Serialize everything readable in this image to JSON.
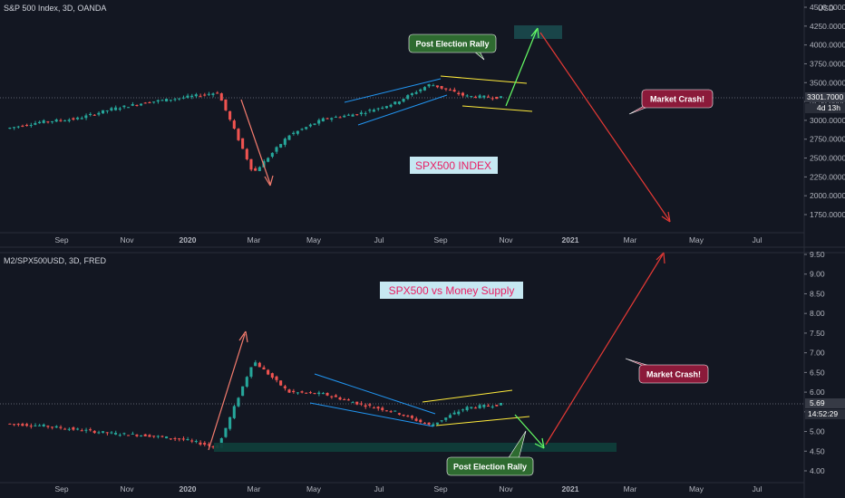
{
  "top": {
    "title": "S&P 500 Index, 3D, OANDA",
    "currency": "USD",
    "price_badge": "3301.7000",
    "countdown_badge": "4d 13h",
    "label_center": "SPX500 INDEX",
    "callout_rally": "Post Election Rally",
    "callout_crash": "Market Crash!",
    "y_ticks": [
      "4500.0000",
      "4250.0000",
      "4000.0000",
      "3750.0000",
      "3500.0000",
      "3250.0000",
      "3000.0000",
      "2750.0000",
      "2500.0000",
      "2250.0000",
      "2000.0000",
      "1750.0000"
    ],
    "x_ticks": [
      "Sep",
      "Nov",
      "2020",
      "Mar",
      "May",
      "Jul",
      "Sep",
      "Nov",
      "2021",
      "Mar",
      "May",
      "Jul"
    ]
  },
  "bottom": {
    "title": "M2/SPX500USD, 3D, FRED",
    "price_badge": "5.69",
    "countdown_badge": "14:52:29",
    "label_center": "SPX500 vs Money Supply",
    "callout_rally": "Post Election Rally",
    "callout_crash": "Market Crash!",
    "y_ticks": [
      "9.50",
      "9.00",
      "8.50",
      "8.00",
      "7.50",
      "7.00",
      "6.50",
      "6.00",
      "5.50",
      "5.00",
      "4.50",
      "4.00"
    ],
    "x_ticks": [
      "Sep",
      "Nov",
      "2020",
      "Mar",
      "May",
      "Jul",
      "Sep",
      "Nov",
      "2021",
      "Mar",
      "May",
      "Jul"
    ]
  },
  "colors": {
    "background": "#131722",
    "bull": "#26a69a",
    "bear": "#ef5350",
    "channel_blue": "#2196f3",
    "channel_yellow": "#ffeb3b",
    "arrow_green": "#4caf50",
    "arrow_red": "#e53935",
    "label_text": "#e91e63"
  },
  "chart_data": [
    {
      "type": "candlestick",
      "title": "S&P 500 Index, 3D, OANDA",
      "ylim": [
        1600,
        4600
      ],
      "x": [
        "2019-08",
        "2019-09",
        "2019-10",
        "2019-11",
        "2019-12",
        "2020-01",
        "2020-02",
        "2020-03",
        "2020-04",
        "2020-05",
        "2020-06",
        "2020-07",
        "2020-08",
        "2020-09",
        "2020-10"
      ],
      "close": [
        2890,
        2980,
        3020,
        3150,
        3240,
        3300,
        3370,
        2300,
        2800,
        3020,
        3090,
        3230,
        3480,
        3320,
        3301.7
      ]
    },
    {
      "type": "candlestick",
      "title": "M2/SPX500USD, 3D, FRED",
      "ylim": [
        3.8,
        9.7
      ],
      "x": [
        "2019-08",
        "2019-09",
        "2019-10",
        "2019-11",
        "2019-12",
        "2020-01",
        "2020-02",
        "2020-03",
        "2020-04",
        "2020-05",
        "2020-06",
        "2020-07",
        "2020-08",
        "2020-09",
        "2020-10"
      ],
      "close": [
        5.2,
        5.15,
        5.05,
        4.95,
        4.9,
        4.8,
        4.6,
        6.8,
        6.0,
        5.95,
        5.7,
        5.5,
        5.15,
        5.6,
        5.69
      ]
    }
  ]
}
